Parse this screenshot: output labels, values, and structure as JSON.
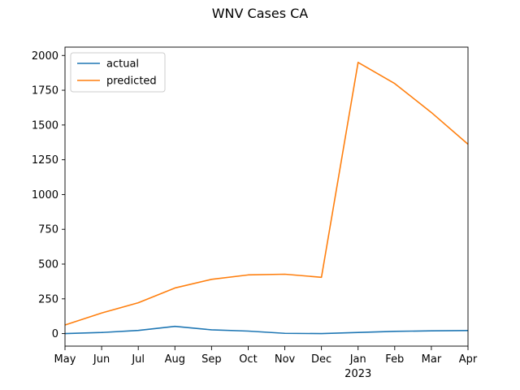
{
  "chart_data": {
    "type": "line",
    "title": "WNV Cases CA",
    "xlabel": "",
    "ylabel": "",
    "categories": [
      "May",
      "Jun",
      "Jul",
      "Aug",
      "Sep",
      "Oct",
      "Nov",
      "Dec",
      "Jan",
      "Feb",
      "Mar",
      "Apr"
    ],
    "year_label": "2023",
    "year_label_under": "Jan",
    "series": [
      {
        "name": "actual",
        "color": "#1f77b4",
        "values": [
          0,
          8,
          23,
          52,
          27,
          18,
          2,
          0,
          8,
          16,
          20,
          22
        ]
      },
      {
        "name": "predicted",
        "color": "#ff7f0e",
        "values": [
          62,
          148,
          222,
          328,
          390,
          422,
          427,
          405,
          1950,
          1798,
          1590,
          1362
        ]
      }
    ],
    "ylim": [
      -90,
      2060
    ],
    "yticks": [
      0,
      250,
      500,
      750,
      1000,
      1250,
      1500,
      1750,
      2000
    ],
    "legend_position": "top-left",
    "grid": false
  }
}
